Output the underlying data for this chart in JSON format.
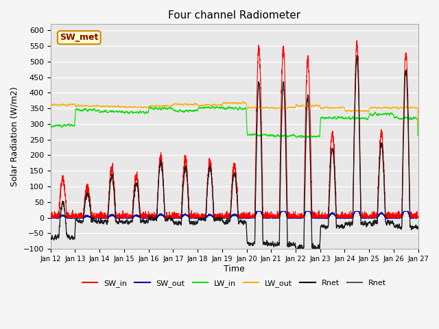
{
  "title": "Four channel Radiometer",
  "xlabel": "Time",
  "ylabel": "Solar Radiation (W/m2)",
  "ylim": [
    -100,
    620
  ],
  "background_color": "#e8e8e8",
  "annotation_text": "SW_met",
  "annotation_bg": "#ffffcc",
  "annotation_border": "#cc8800",
  "annotation_text_color": "#880000",
  "legend_labels": [
    "SW_in",
    "SW_out",
    "LW_in",
    "LW_out",
    "Rnet",
    "Rnet"
  ],
  "line_colors": [
    "#ff0000",
    "#0000aa",
    "#00dd00",
    "#ffaa00",
    "#000000",
    "#555555"
  ],
  "x_tick_labels": [
    "Jan 12",
    "Jan 13",
    "Jan 14",
    "Jan 15",
    "Jan 16",
    "Jan 17",
    "Jan 18",
    "Jan 19",
    "Jan 20",
    "Jan 21",
    "Jan 22",
    "Jan 23",
    "Jan 24",
    "Jan 25",
    "Jan 26",
    "Jan 27"
  ],
  "yticks": [
    -100,
    -50,
    0,
    50,
    100,
    150,
    200,
    250,
    300,
    350,
    400,
    450,
    500,
    550,
    600
  ],
  "sw_in_peaks": [
    0.22,
    0.17,
    0.28,
    0.24,
    0.35,
    0.34,
    0.32,
    0.3,
    0.97,
    0.97,
    0.91,
    0.48,
    1.0,
    0.48,
    0.94
  ],
  "lw_in_base": [
    295,
    345,
    340,
    338,
    350,
    342,
    352,
    350,
    265,
    262,
    260,
    320,
    318,
    332,
    318
  ],
  "lw_out_base": [
    362,
    358,
    356,
    354,
    358,
    364,
    360,
    368,
    352,
    352,
    358,
    352,
    342,
    352,
    352
  ]
}
